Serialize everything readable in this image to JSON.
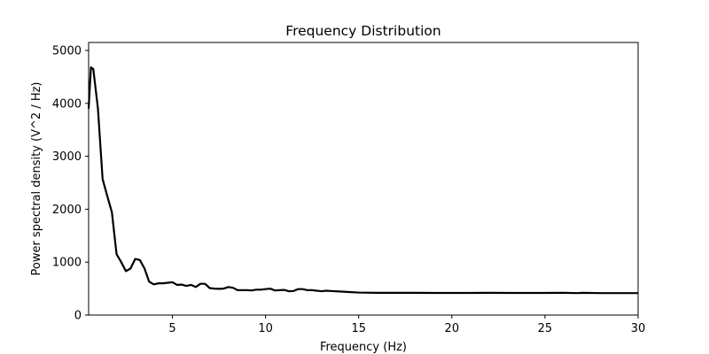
{
  "chart_data": {
    "type": "line",
    "title": "Frequency Distribution",
    "xlabel": "Frequency (Hz)",
    "ylabel": "Power spectral density (V^2 / Hz)",
    "xlim": [
      0.5,
      30
    ],
    "ylim": [
      0,
      5150
    ],
    "xticks": [
      5,
      10,
      15,
      20,
      25,
      30
    ],
    "yticks": [
      0,
      1000,
      2000,
      3000,
      4000,
      5000
    ],
    "grid": false,
    "legend": "none",
    "series": [
      {
        "color": "#000000",
        "x": [
          0.5,
          0.625,
          0.75,
          1.0,
          1.25,
          1.5,
          1.75,
          2.0,
          2.25,
          2.5,
          2.75,
          3.0,
          3.25,
          3.5,
          3.75,
          4.0,
          4.25,
          4.5,
          4.75,
          5.0,
          5.25,
          5.5,
          5.75,
          6.0,
          6.25,
          6.5,
          6.75,
          7.0,
          7.25,
          7.5,
          7.75,
          8.0,
          8.25,
          8.5,
          8.75,
          9.0,
          9.25,
          9.5,
          9.75,
          10.0,
          10.25,
          10.5,
          10.75,
          11.0,
          11.25,
          11.5,
          11.75,
          12.0,
          12.25,
          12.5,
          12.75,
          13.0,
          13.25,
          13.5,
          13.75,
          14.0,
          14.5,
          15.0,
          16.0,
          17.0,
          18.0,
          19.0,
          20.0,
          21.0,
          22.0,
          23.0,
          24.0,
          25.0,
          26.0,
          26.75,
          27.0,
          28.0,
          29.0,
          30.0
        ],
        "y": [
          3900,
          4680,
          4650,
          3900,
          2570,
          2250,
          1940,
          1150,
          1000,
          830,
          880,
          1060,
          1040,
          880,
          630,
          580,
          600,
          600,
          610,
          620,
          570,
          575,
          550,
          570,
          530,
          590,
          590,
          510,
          500,
          495,
          500,
          530,
          515,
          470,
          470,
          470,
          465,
          480,
          480,
          490,
          500,
          465,
          470,
          475,
          450,
          455,
          490,
          490,
          470,
          470,
          460,
          450,
          460,
          455,
          450,
          445,
          435,
          425,
          420,
          420,
          420,
          418,
          418,
          418,
          420,
          418,
          418,
          418,
          420,
          415,
          420,
          415,
          415,
          415
        ]
      }
    ]
  }
}
